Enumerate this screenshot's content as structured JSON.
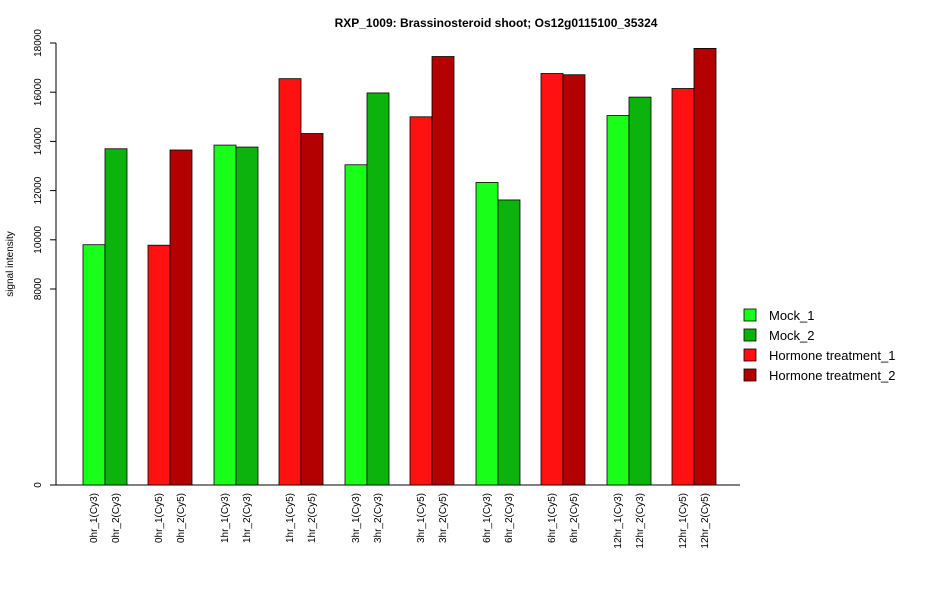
{
  "chart_data": {
    "type": "bar",
    "title": "RXP_1009: Brassinosteroid shoot; Os12g0115100_35324",
    "ylabel": "signal intensity",
    "xlabel": "",
    "ylim": [
      0,
      18000
    ],
    "y_ticks": [
      0,
      8000,
      10000,
      12000,
      14000,
      16000,
      18000
    ],
    "axis_break": true,
    "grid": false,
    "legend_position": "right",
    "bars": [
      {
        "label": "0hr_1(Cy3)",
        "value": 9800,
        "series": 0
      },
      {
        "label": "0hr_2(Cy3)",
        "value": 13700,
        "series": 1
      },
      {
        "label": "0hr_1(Cy5)",
        "value": 9780,
        "series": 2
      },
      {
        "label": "0hr_2(Cy5)",
        "value": 13650,
        "series": 3
      },
      {
        "label": "1hr_1(Cy3)",
        "value": 13850,
        "series": 0
      },
      {
        "label": "1hr_2(Cy3)",
        "value": 13770,
        "series": 1
      },
      {
        "label": "1hr_1(Cy5)",
        "value": 16550,
        "series": 2
      },
      {
        "label": "1hr_2(Cy5)",
        "value": 14320,
        "series": 3
      },
      {
        "label": "3hr_1(Cy3)",
        "value": 13050,
        "series": 0
      },
      {
        "label": "3hr_2(Cy3)",
        "value": 15970,
        "series": 1
      },
      {
        "label": "3hr_1(Cy5)",
        "value": 15000,
        "series": 2
      },
      {
        "label": "3hr_2(Cy5)",
        "value": 17450,
        "series": 3
      },
      {
        "label": "6hr_1(Cy3)",
        "value": 12330,
        "series": 0
      },
      {
        "label": "6hr_2(Cy3)",
        "value": 11620,
        "series": 1
      },
      {
        "label": "6hr_1(Cy5)",
        "value": 16760,
        "series": 2
      },
      {
        "label": "6hr_2(Cy5)",
        "value": 16710,
        "series": 3
      },
      {
        "label": "12hr_1(Cy3)",
        "value": 15050,
        "series": 0
      },
      {
        "label": "12hr_2(Cy3)",
        "value": 15800,
        "series": 1
      },
      {
        "label": "12hr_1(Cy5)",
        "value": 16150,
        "series": 2
      },
      {
        "label": "12hr_2(Cy5)",
        "value": 17780,
        "series": 3
      }
    ],
    "series": [
      {
        "name": "Mock_1",
        "color": "#1AFF1A"
      },
      {
        "name": "Mock_2",
        "color": "#0DB30D"
      },
      {
        "name": "Hormone treatment_1",
        "color": "#FF1111"
      },
      {
        "name": "Hormone treatment_2",
        "color": "#B30000"
      }
    ]
  }
}
